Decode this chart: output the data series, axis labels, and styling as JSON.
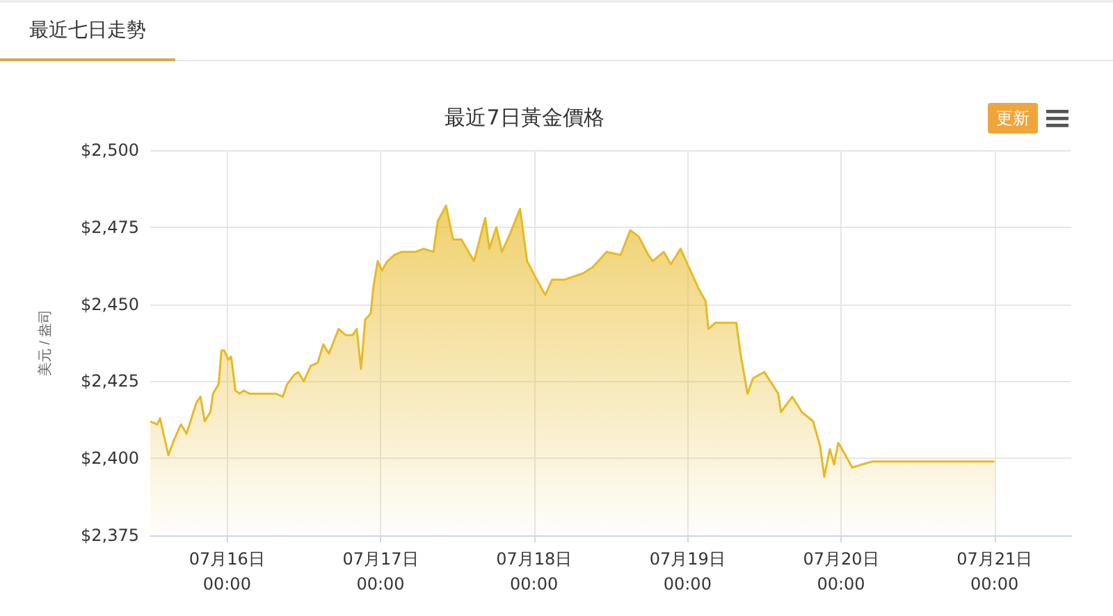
{
  "chart_data": {
    "type": "area",
    "title": "最近7日黃金價格",
    "ylabel": "美元 / 盎司",
    "annotations": [
      "最近七日走勢",
      "更新"
    ],
    "xlim": [
      "--07-15T12:00",
      "--07-21T12:00"
    ],
    "xticks": [
      {
        "value": "--07-16T00:00",
        "label": "07月16日\n00:00"
      },
      {
        "value": "--07-17T00:00",
        "label": "07月17日\n00:00"
      },
      {
        "value": "--07-18T00:00",
        "label": "07月18日\n00:00"
      },
      {
        "value": "--07-19T00:00",
        "label": "07月19日\n00:00"
      },
      {
        "value": "--07-20T00:00",
        "label": "07月20日\n00:00"
      },
      {
        "value": "--07-21T00:00",
        "label": "07月21日\n00:00"
      }
    ],
    "ylim": [
      2375,
      2500
    ],
    "yticks": [
      {
        "value": 2375,
        "label": "$2,375"
      },
      {
        "value": 2400,
        "label": "$2,400"
      },
      {
        "value": 2425,
        "label": "$2,425"
      },
      {
        "value": 2450,
        "label": "$2,450"
      },
      {
        "value": 2475,
        "label": "$2,475"
      },
      {
        "value": 2500,
        "label": "$2,500"
      }
    ],
    "grid": true,
    "marker": "none",
    "line_style": "solid",
    "x": [
      "--07-15T12:00",
      "--07-15T13:05",
      "--07-15T13:32",
      "--07-15T14:50",
      "--07-15T15:43",
      "--07-15T16:48",
      "--07-15T17:40",
      "--07-15T19:12",
      "--07-15T19:51",
      "--07-15T20:31",
      "--07-15T21:23",
      "--07-15T21:49",
      "--07-15T22:41",
      "--07-15T23:08",
      "--07-15T23:34",
      "--07-16T00:13",
      "--07-16T00:39",
      "--07-16T01:19",
      "--07-16T01:58",
      "--07-16T02:37",
      "--07-16T03:29",
      "--07-16T05:27",
      "--07-16T07:38",
      "--07-16T08:44",
      "--07-16T09:23",
      "--07-16T10:28",
      "--07-16T11:08",
      "--07-16T12:00",
      "--07-16T13:05",
      "--07-16T14:11",
      "--07-16T15:03",
      "--07-16T15:56",
      "--07-16T17:27",
      "--07-16T18:33",
      "--07-16T19:38",
      "--07-16T20:17",
      "--07-16T20:57",
      "--07-16T21:36",
      "--07-16T22:28",
      "--07-16T22:55",
      "--07-16T23:34",
      "--07-17T00:13",
      "--07-17T01:05",
      "--07-17T02:11",
      "--07-17T03:16",
      "--07-17T05:27",
      "--07-17T06:46",
      "--07-17T08:17",
      "--07-17T08:57",
      "--07-17T10:15",
      "--07-17T11:21",
      "--07-17T12:39",
      "--07-17T14:37",
      "--07-17T16:22",
      "--07-17T17:01",
      "--07-17T18:07",
      "--07-17T18:59",
      "--07-17T20:17",
      "--07-17T21:49",
      "--07-17T22:55",
      "--07-18T00:26",
      "--07-18T01:45",
      "--07-18T02:50",
      "--07-18T04:48",
      "--07-18T07:38",
      "--07-18T09:10",
      "--07-18T11:21",
      "--07-18T13:32",
      "--07-18T15:03",
      "--07-18T16:22",
      "--07-18T17:53",
      "--07-18T18:33",
      "--07-18T20:17",
      "--07-18T21:23",
      "--07-18T22:55",
      "--07-19T00:26",
      "--07-19T01:45",
      "--07-19T02:50",
      "--07-19T03:16",
      "--07-19T04:22",
      "--07-19T07:38",
      "--07-19T08:17",
      "--07-19T09:23",
      "--07-19T10:15",
      "--07-19T12:00",
      "--07-19T14:11",
      "--07-19T14:37",
      "--07-19T16:22",
      "--07-19T17:53",
      "--07-19T19:38",
      "--07-19T20:44",
      "--07-19T21:23",
      "--07-19T22:15",
      "--07-19T22:55",
      "--07-19T23:34",
      "--07-20T00:26",
      "--07-20T01:45",
      "--07-20T03:16",
      "--07-20T05:01",
      "--07-21T00:00"
    ],
    "series": [
      {
        "color": "#e8b923",
        "values": [
          2412,
          2411,
          2413,
          2401,
          2406,
          2411,
          2408,
          2418,
          2420,
          2412,
          2415,
          2421,
          2424,
          2435,
          2435,
          2432,
          2433,
          2422,
          2421,
          2422,
          2421,
          2421,
          2421,
          2420,
          2424,
          2427,
          2428,
          2425,
          2430,
          2431,
          2437,
          2434,
          2442,
          2440,
          2440,
          2442,
          2429,
          2445,
          2447,
          2456,
          2464,
          2461,
          2464,
          2466,
          2467,
          2467,
          2468,
          2467,
          2477,
          2482,
          2471,
          2471,
          2464,
          2478,
          2468,
          2475,
          2467,
          2473,
          2481,
          2464,
          2458,
          2453,
          2458,
          2458,
          2460,
          2462,
          2467,
          2466,
          2474,
          2472,
          2466,
          2464,
          2467,
          2463,
          2468,
          2461,
          2455,
          2451,
          2442,
          2444,
          2444,
          2434,
          2421,
          2426,
          2428,
          2421,
          2415,
          2420,
          2415,
          2412,
          2404,
          2394,
          2403,
          2398,
          2405,
          2402,
          2397,
          2398,
          2399,
          2399
        ]
      }
    ]
  }
}
